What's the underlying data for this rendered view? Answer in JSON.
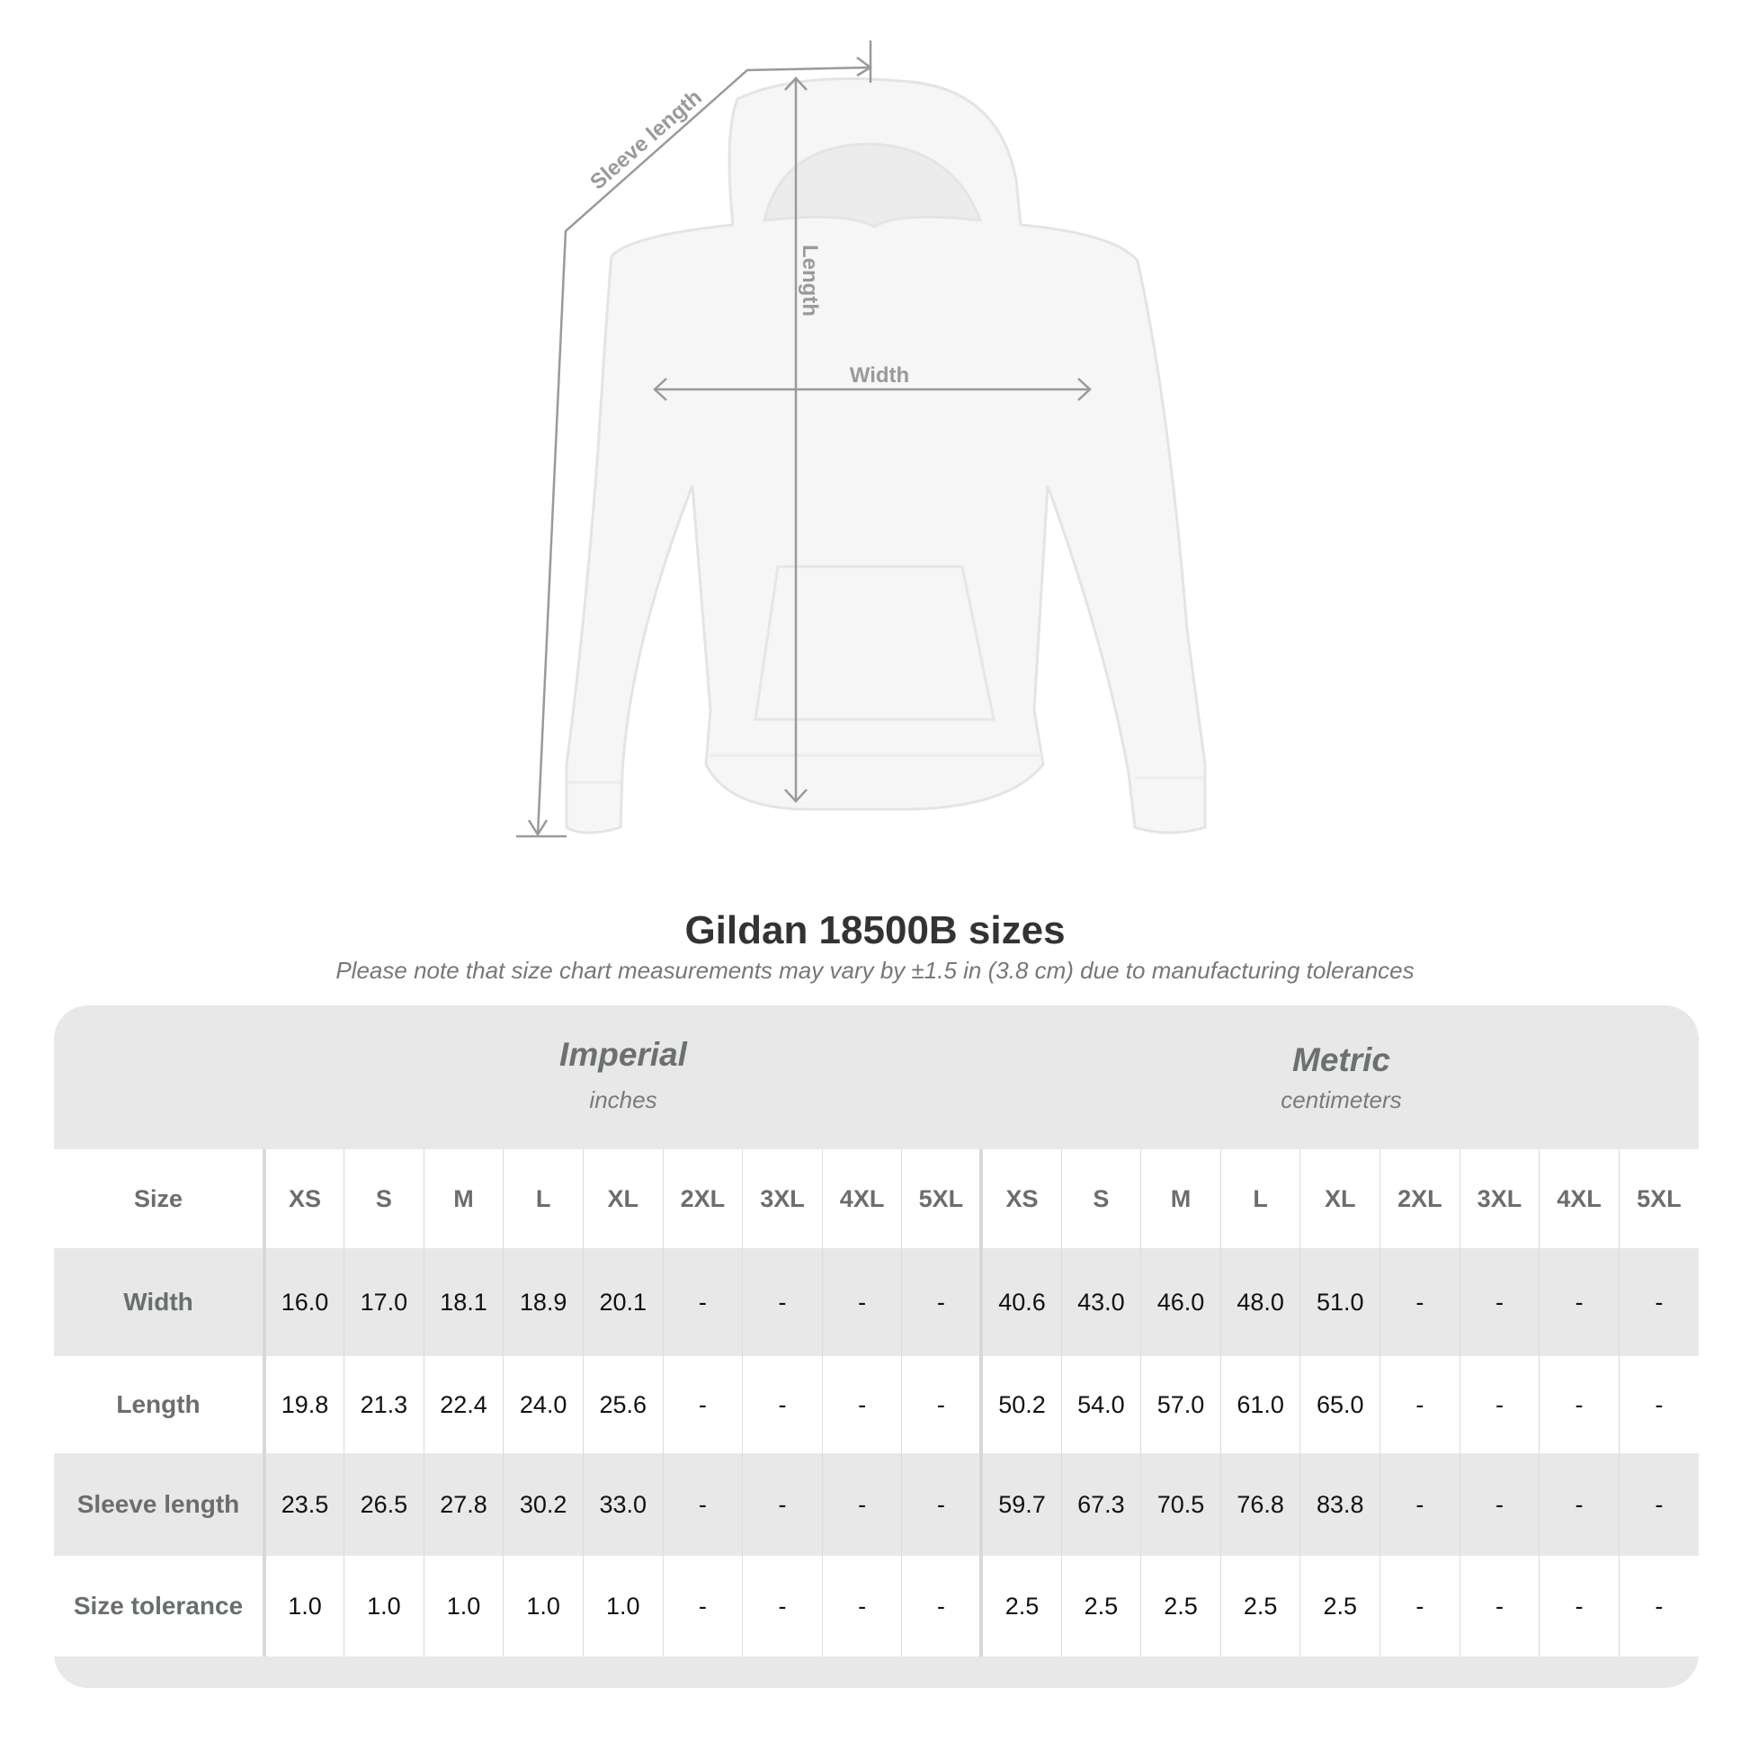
{
  "diagram": {
    "labels": {
      "sleeve": "Sleeve length",
      "length": "Length",
      "width": "Width"
    }
  },
  "title": "Gildan 18500B sizes",
  "subtitle": "Please note that size chart measurements may vary by ±1.5 in (3.8 cm) due to manufacturing tolerances",
  "imperial": {
    "label": "Imperial",
    "unit": "inches"
  },
  "metric": {
    "label": "Metric",
    "unit": "centimeters"
  },
  "table": {
    "size_label": "Size",
    "sizes": [
      "XS",
      "S",
      "M",
      "L",
      "XL",
      "2XL",
      "3XL",
      "4XL",
      "5XL"
    ],
    "rows": [
      {
        "label": "Width",
        "imperial": [
          "16.0",
          "17.0",
          "18.1",
          "18.9",
          "20.1",
          "-",
          "-",
          "-",
          "-"
        ],
        "metric": [
          "40.6",
          "43.0",
          "46.0",
          "48.0",
          "51.0",
          "-",
          "-",
          "-",
          "-"
        ]
      },
      {
        "label": "Length",
        "imperial": [
          "19.8",
          "21.3",
          "22.4",
          "24.0",
          "25.6",
          "-",
          "-",
          "-",
          "-"
        ],
        "metric": [
          "50.2",
          "54.0",
          "57.0",
          "61.0",
          "65.0",
          "-",
          "-",
          "-",
          "-"
        ]
      },
      {
        "label": "Sleeve length",
        "imperial": [
          "23.5",
          "26.5",
          "27.8",
          "30.2",
          "33.0",
          "-",
          "-",
          "-",
          "-"
        ],
        "metric": [
          "59.7",
          "67.3",
          "70.5",
          "76.8",
          "83.8",
          "-",
          "-",
          "-",
          "-"
        ]
      },
      {
        "label": "Size tolerance",
        "imperial": [
          "1.0",
          "1.0",
          "1.0",
          "1.0",
          "1.0",
          "-",
          "-",
          "-",
          "-"
        ],
        "metric": [
          "2.5",
          "2.5",
          "2.5",
          "2.5",
          "2.5",
          "-",
          "-",
          "-",
          "-"
        ]
      }
    ]
  }
}
